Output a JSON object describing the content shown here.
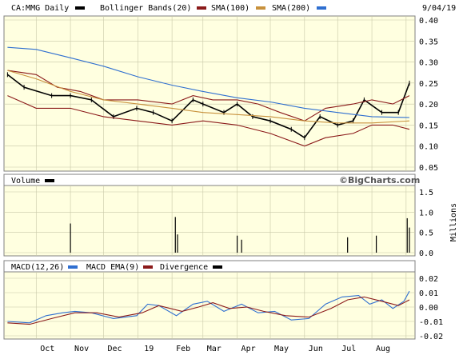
{
  "colors": {
    "panel_bg": "#ffffe0",
    "frame": "#808080",
    "grid": "#c8c8a8",
    "price": "#000000",
    "bollinger": "#8b1a1a",
    "sma100": "#c8913c",
    "sma200": "#2f6fd0",
    "volume": "#000000",
    "macd": "#2f6fd0",
    "macd_ema": "#8b1a1a",
    "divergence": "#000000"
  },
  "header": {
    "ticker": "CA:MMG Daily",
    "date": "9/04/19"
  },
  "legend": {
    "bollinger": "Bollinger Bands(20)",
    "sma100": "SMA(100)",
    "sma200": "SMA(200)",
    "volume": "Volume",
    "macd": "MACD(12,26)",
    "macd_ema": "MACD EMA(9)",
    "divergence": "Divergence"
  },
  "watermark": "©BigCharts.com",
  "volume_unit": "Millions",
  "x_labels": [
    "Oct",
    "Nov",
    "Dec",
    "19",
    "Feb",
    "Mar",
    "Apr",
    "May",
    "Jun",
    "Jul",
    "Aug"
  ],
  "chart_data": [
    {
      "type": "line",
      "title": "CA:MMG Daily",
      "ylim": [
        0.05,
        0.4
      ],
      "y_ticks": [
        "0.40",
        "0.35",
        "0.30",
        "0.25",
        "0.20",
        "0.15",
        "0.10",
        "0.05"
      ],
      "x_range": [
        "2018-09-04",
        "2019-09-04"
      ],
      "series": [
        {
          "name": "Price",
          "points": [
            [
              "2018-09-05",
              0.27
            ],
            [
              "2018-09-20",
              0.24
            ],
            [
              "2018-10-15",
              0.22
            ],
            [
              "2018-11-01",
              0.22
            ],
            [
              "2018-11-20",
              0.21
            ],
            [
              "2018-12-10",
              0.17
            ],
            [
              "2018-12-31",
              0.19
            ],
            [
              "2019-01-15",
              0.18
            ],
            [
              "2019-02-01",
              0.16
            ],
            [
              "2019-02-20",
              0.21
            ],
            [
              "2019-03-01",
              0.2
            ],
            [
              "2019-03-20",
              0.18
            ],
            [
              "2019-04-01",
              0.2
            ],
            [
              "2019-04-15",
              0.17
            ],
            [
              "2019-05-01",
              0.16
            ],
            [
              "2019-05-20",
              0.14
            ],
            [
              "2019-06-01",
              0.12
            ],
            [
              "2019-06-15",
              0.17
            ],
            [
              "2019-07-01",
              0.15
            ],
            [
              "2019-07-15",
              0.16
            ],
            [
              "2019-07-25",
              0.21
            ],
            [
              "2019-08-10",
              0.18
            ],
            [
              "2019-08-25",
              0.18
            ],
            [
              "2019-09-04",
              0.25
            ]
          ]
        },
        {
          "name": "Bollinger Bands(20) upper",
          "points": [
            [
              "2018-09-05",
              0.28
            ],
            [
              "2018-10-01",
              0.27
            ],
            [
              "2018-10-20",
              0.24
            ],
            [
              "2018-11-10",
              0.23
            ],
            [
              "2018-12-01",
              0.21
            ],
            [
              "2019-01-01",
              0.21
            ],
            [
              "2019-02-01",
              0.2
            ],
            [
              "2019-02-20",
              0.22
            ],
            [
              "2019-03-10",
              0.21
            ],
            [
              "2019-04-01",
              0.21
            ],
            [
              "2019-04-20",
              0.2
            ],
            [
              "2019-05-10",
              0.18
            ],
            [
              "2019-06-01",
              0.16
            ],
            [
              "2019-06-20",
              0.19
            ],
            [
              "2019-07-15",
              0.2
            ],
            [
              "2019-08-01",
              0.21
            ],
            [
              "2019-08-20",
              0.2
            ],
            [
              "2019-09-04",
              0.22
            ]
          ]
        },
        {
          "name": "Bollinger Bands(20) lower",
          "points": [
            [
              "2018-09-05",
              0.22
            ],
            [
              "2018-10-01",
              0.19
            ],
            [
              "2018-11-01",
              0.19
            ],
            [
              "2018-12-01",
              0.17
            ],
            [
              "2019-01-01",
              0.16
            ],
            [
              "2019-02-01",
              0.15
            ],
            [
              "2019-03-01",
              0.16
            ],
            [
              "2019-04-01",
              0.15
            ],
            [
              "2019-05-01",
              0.13
            ],
            [
              "2019-06-01",
              0.1
            ],
            [
              "2019-06-20",
              0.12
            ],
            [
              "2019-07-15",
              0.13
            ],
            [
              "2019-08-01",
              0.15
            ],
            [
              "2019-08-20",
              0.15
            ],
            [
              "2019-09-04",
              0.14
            ]
          ]
        },
        {
          "name": "SMA(100)",
          "points": [
            [
              "2018-09-05",
              0.28
            ],
            [
              "2018-10-01",
              0.26
            ],
            [
              "2018-11-01",
              0.23
            ],
            [
              "2018-12-01",
              0.21
            ],
            [
              "2019-01-01",
              0.2
            ],
            [
              "2019-02-01",
              0.19
            ],
            [
              "2019-03-01",
              0.18
            ],
            [
              "2019-04-01",
              0.175
            ],
            [
              "2019-05-01",
              0.17
            ],
            [
              "2019-06-01",
              0.16
            ],
            [
              "2019-07-01",
              0.155
            ],
            [
              "2019-08-01",
              0.155
            ],
            [
              "2019-09-04",
              0.16
            ]
          ]
        },
        {
          "name": "SMA(200)",
          "points": [
            [
              "2018-09-05",
              0.335
            ],
            [
              "2018-10-01",
              0.33
            ],
            [
              "2018-11-01",
              0.31
            ],
            [
              "2018-12-01",
              0.29
            ],
            [
              "2019-01-01",
              0.265
            ],
            [
              "2019-02-01",
              0.245
            ],
            [
              "2019-03-01",
              0.23
            ],
            [
              "2019-04-01",
              0.215
            ],
            [
              "2019-05-01",
              0.205
            ],
            [
              "2019-06-01",
              0.19
            ],
            [
              "2019-07-01",
              0.18
            ],
            [
              "2019-08-01",
              0.17
            ],
            [
              "2019-09-04",
              0.168
            ]
          ]
        }
      ]
    },
    {
      "type": "bar",
      "title": "Volume",
      "ylabel": "Millions",
      "ylim": [
        0,
        1.5
      ],
      "y_ticks": [
        "1.5",
        "1.0",
        "0.5",
        "0.0"
      ],
      "spikes": [
        [
          "2018-11-01",
          0.72
        ],
        [
          "2019-02-04",
          0.88
        ],
        [
          "2019-02-06",
          0.45
        ],
        [
          "2019-04-01",
          0.42
        ],
        [
          "2019-04-05",
          0.32
        ],
        [
          "2019-07-10",
          0.38
        ],
        [
          "2019-08-05",
          0.42
        ],
        [
          "2019-09-02",
          0.85
        ],
        [
          "2019-09-04",
          0.62
        ]
      ]
    },
    {
      "type": "line",
      "title": "MACD(12,26)",
      "ylim": [
        -0.02,
        0.02
      ],
      "y_ticks": [
        "0.02",
        "0.01",
        "0.00",
        "-0.01",
        "-0.02"
      ],
      "series": [
        {
          "name": "MACD(12,26)",
          "points": [
            [
              "2018-09-05",
              -0.01
            ],
            [
              "2018-09-25",
              -0.011
            ],
            [
              "2018-10-10",
              -0.006
            ],
            [
              "2018-10-25",
              -0.004
            ],
            [
              "2018-11-05",
              -0.003
            ],
            [
              "2018-11-20",
              -0.004
            ],
            [
              "2018-12-10",
              -0.008
            ],
            [
              "2018-12-31",
              -0.006
            ],
            [
              "2019-01-10",
              0.002
            ],
            [
              "2019-01-20",
              0.001
            ],
            [
              "2019-02-05",
              -0.006
            ],
            [
              "2019-02-20",
              0.002
            ],
            [
              "2019-03-05",
              0.004
            ],
            [
              "2019-03-20",
              -0.003
            ],
            [
              "2019-04-05",
              0.002
            ],
            [
              "2019-04-20",
              -0.004
            ],
            [
              "2019-05-05",
              -0.003
            ],
            [
              "2019-05-20",
              -0.009
            ],
            [
              "2019-06-05",
              -0.008
            ],
            [
              "2019-06-20",
              0.002
            ],
            [
              "2019-07-05",
              0.007
            ],
            [
              "2019-07-20",
              0.008
            ],
            [
              "2019-07-30",
              0.002
            ],
            [
              "2019-08-10",
              0.005
            ],
            [
              "2019-08-20",
              -0.001
            ],
            [
              "2019-08-30",
              0.004
            ],
            [
              "2019-09-04",
              0.011
            ]
          ]
        },
        {
          "name": "MACD EMA(9)",
          "points": [
            [
              "2018-09-05",
              -0.011
            ],
            [
              "2018-09-25",
              -0.012
            ],
            [
              "2018-10-15",
              -0.008
            ],
            [
              "2018-11-05",
              -0.004
            ],
            [
              "2018-11-25",
              -0.004
            ],
            [
              "2018-12-15",
              -0.007
            ],
            [
              "2019-01-05",
              -0.004
            ],
            [
              "2019-01-20",
              0.001
            ],
            [
              "2019-02-10",
              -0.003
            ],
            [
              "2019-02-25",
              0.0
            ],
            [
              "2019-03-10",
              0.003
            ],
            [
              "2019-03-25",
              -0.001
            ],
            [
              "2019-04-10",
              0.0
            ],
            [
              "2019-04-25",
              -0.003
            ],
            [
              "2019-05-15",
              -0.006
            ],
            [
              "2019-06-05",
              -0.007
            ],
            [
              "2019-06-25",
              -0.001
            ],
            [
              "2019-07-10",
              0.005
            ],
            [
              "2019-07-25",
              0.007
            ],
            [
              "2019-08-10",
              0.004
            ],
            [
              "2019-08-25",
              0.001
            ],
            [
              "2019-09-04",
              0.005
            ]
          ]
        }
      ]
    }
  ]
}
